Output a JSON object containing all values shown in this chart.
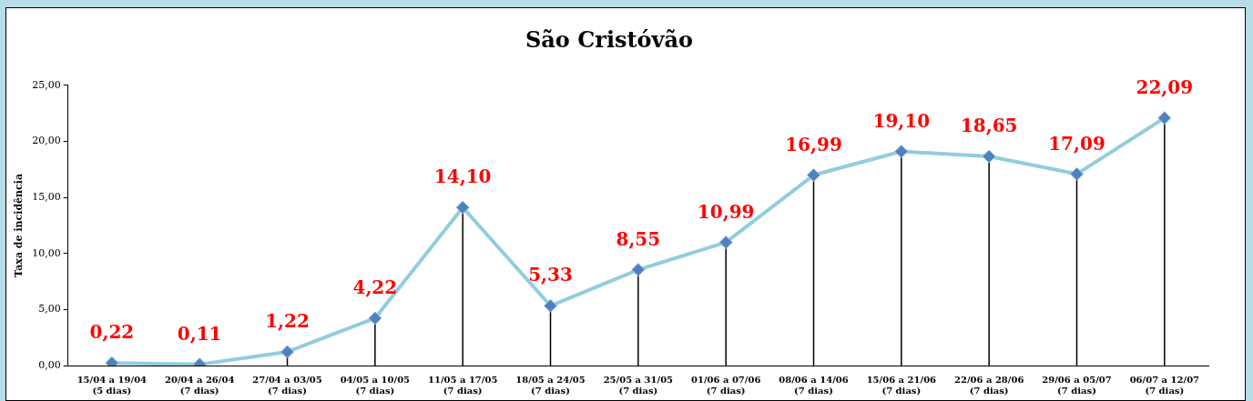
{
  "chart_data": {
    "type": "line",
    "title": "São Cristóvão",
    "ylabel": "Taxa de incidência",
    "categories": [
      "15/04 a 19/04\n(5 dias)",
      "20/04 a 26/04\n(7 dias)",
      "27/04 a 03/05\n(7 dias)",
      "04/05 a 10/05\n(7 dias)",
      "11/05 a 17/05\n(7 dias)",
      "18/05 a 24/05\n(7 dias)",
      "25/05 a 31/05\n(7 dias)",
      "01/06 a 07/06\n(7 dias)",
      "08/06 a 14/06\n(7 dias)",
      "15/06 a 21/06\n(7 dias)",
      "22/06 a 28/06\n(7 dias)",
      "29/06 a 05/07\n(7 dias)",
      "06/07 a 12/07\n(7 dias)"
    ],
    "series": [
      {
        "color": "#92cddc",
        "values": [
          0.22,
          0.11,
          1.22,
          4.22,
          14.1,
          5.33,
          8.55,
          10.99,
          16.99,
          19.1,
          18.65,
          17.09,
          22.09
        ],
        "value_labels": [
          "0,22",
          "0,11",
          "1,22",
          "4,22",
          "14,10",
          "5,33",
          "8,55",
          "10,99",
          "16,99",
          "19,10",
          "18,65",
          "17,09",
          "22,09"
        ]
      }
    ],
    "ylim": [
      0,
      25
    ],
    "yticks": [
      {
        "value": 0,
        "label": "0,00"
      },
      {
        "value": 5,
        "label": "5,00"
      },
      {
        "value": 10,
        "label": "10,00"
      },
      {
        "value": 15,
        "label": "15,00"
      },
      {
        "value": 20,
        "label": "20,00"
      },
      {
        "value": 25,
        "label": "25,00"
      }
    ],
    "grid": "x",
    "legend": false,
    "marker": "diamond",
    "line_style": "solid"
  }
}
